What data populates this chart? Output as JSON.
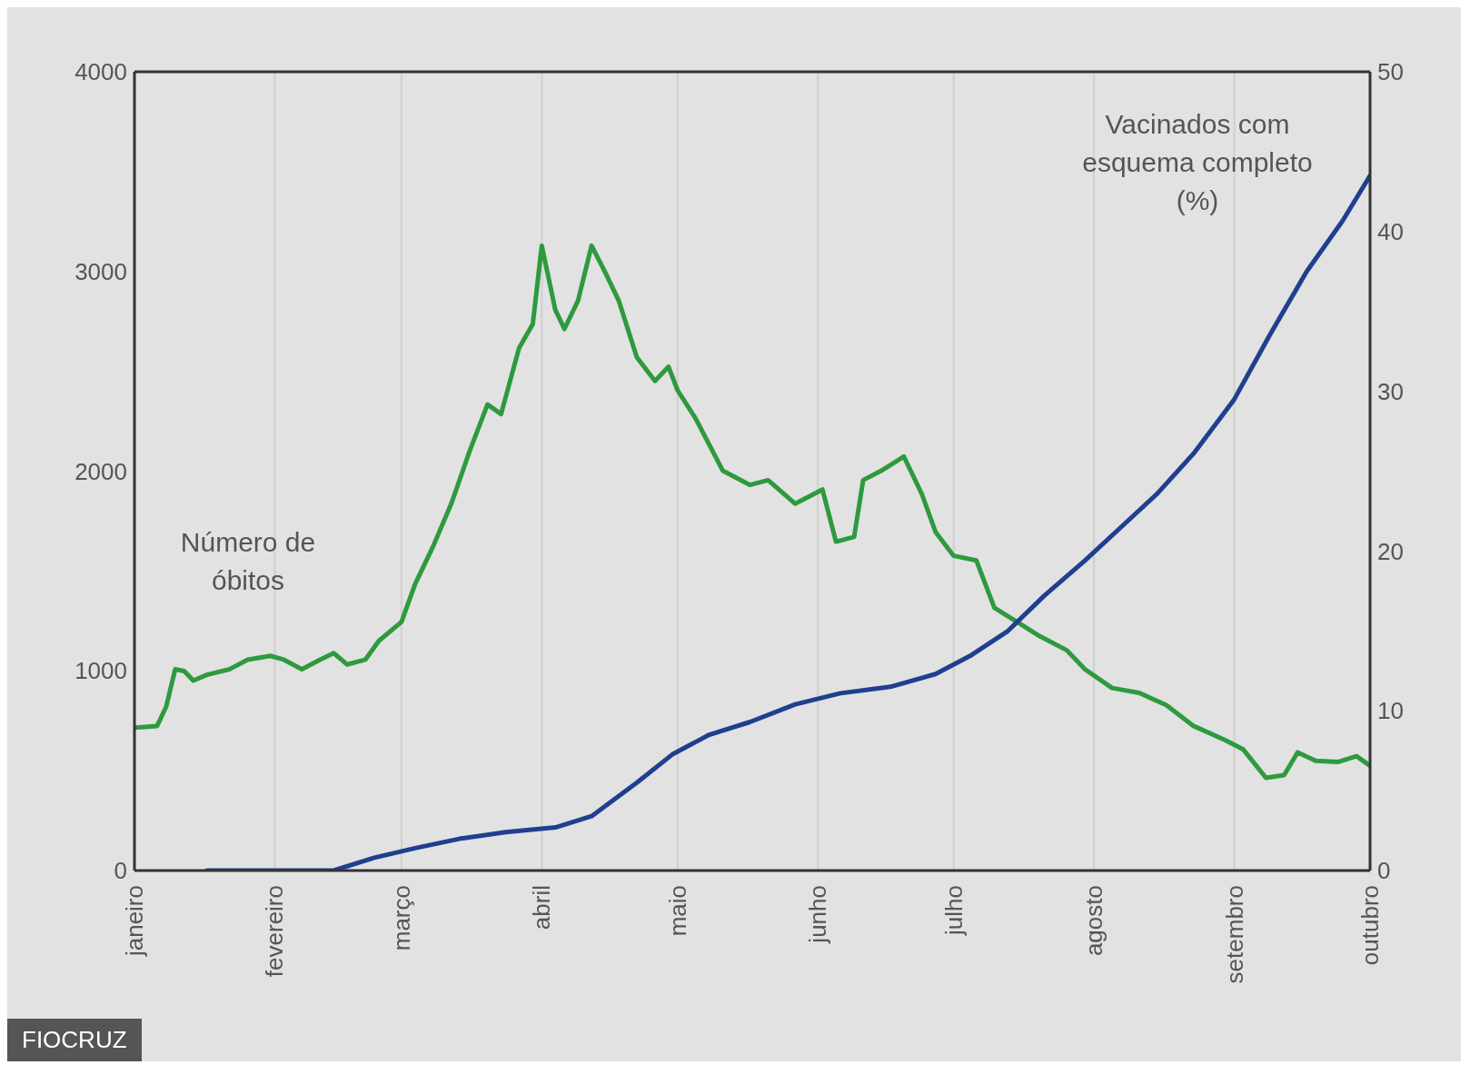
{
  "chart_data": {
    "type": "line",
    "xlim": [
      "--01-01",
      "--10-01"
    ],
    "xticks": [
      {
        "value": "--01-01",
        "label": "janeiro"
      },
      {
        "value": "--02-01",
        "label": "fevereiro"
      },
      {
        "value": "--03-01",
        "label": "março"
      },
      {
        "value": "--04-01",
        "label": "abril"
      },
      {
        "value": "--05-01",
        "label": "maio"
      },
      {
        "value": "--06-01",
        "label": "junho"
      },
      {
        "value": "--07-01",
        "label": "julho"
      },
      {
        "value": "--08-01",
        "label": "agosto"
      },
      {
        "value": "--09-01",
        "label": "setembro"
      },
      {
        "value": "--10-01",
        "label": "outubro"
      }
    ],
    "ylim": [
      0,
      4000
    ],
    "yticks": [
      0,
      1000,
      2000,
      3000,
      4000
    ],
    "y2lim": [
      0,
      50
    ],
    "y2ticks": [
      0,
      10,
      20,
      30,
      40,
      50
    ],
    "grid": "x",
    "marker": "none",
    "line_style": "solid",
    "series": [
      {
        "name": "Número de óbitos",
        "color": "#2e9a3e",
        "x": [
          "--01-01",
          "--01-06",
          "--01-08",
          "--01-10",
          "--01-12",
          "--01-14",
          "--01-17",
          "--01-22",
          "--01-26",
          "--01-31",
          "--02-03",
          "--02-07",
          "--02-11",
          "--02-14",
          "--02-17",
          "--02-21",
          "--02-24",
          "--03-01",
          "--03-04",
          "--03-08",
          "--03-12",
          "--03-16",
          "--03-20",
          "--03-23",
          "--03-27",
          "--03-30",
          "--04-01",
          "--04-04",
          "--04-06",
          "--04-09",
          "--04-12",
          "--04-15",
          "--04-18",
          "--04-22",
          "--04-26",
          "--04-29",
          "--05-01",
          "--05-05",
          "--05-11",
          "--05-17",
          "--05-21",
          "--05-27",
          "--06-02",
          "--06-05",
          "--06-09",
          "--06-11",
          "--06-15",
          "--06-20",
          "--06-24",
          "--06-27",
          "--07-01",
          "--07-06",
          "--07-10",
          "--07-15",
          "--07-20",
          "--07-26",
          "--07-30",
          "--08-05",
          "--08-11",
          "--08-17",
          "--08-23",
          "--08-30",
          "--09-03",
          "--09-08",
          "--09-12",
          "--09-15",
          "--09-19",
          "--09-24",
          "--09-28",
          "--10-01"
        ],
        "values": [
          715,
          724,
          820,
          1008,
          999,
          951,
          980,
          1008,
          1056,
          1075,
          1056,
          1008,
          1056,
          1089,
          1032,
          1056,
          1150,
          1245,
          1434,
          1624,
          1837,
          2097,
          2334,
          2286,
          2618,
          2736,
          3129,
          2807,
          2712,
          2854,
          3129,
          2996,
          2854,
          2570,
          2452,
          2523,
          2405,
          2263,
          2002,
          1931,
          1955,
          1837,
          1908,
          1647,
          1671,
          1955,
          2002,
          2073,
          1884,
          1695,
          1576,
          1553,
          1316,
          1245,
          1174,
          1103,
          1008,
          914,
          890,
          828,
          724,
          653,
          606,
          464,
          478,
          592,
          549,
          544,
          573,
          525
        ]
      },
      {
        "name": "Vacinados com esquema completo (%)",
        "color": "#1f3f8f",
        "axis": "y2",
        "x": [
          "--01-17",
          "--02-14",
          "--02-23",
          "--03-04",
          "--03-14",
          "--03-24",
          "--04-04",
          "--04-12",
          "--04-22",
          "--04-30",
          "--05-08",
          "--05-17",
          "--05-27",
          "--06-06",
          "--06-17",
          "--06-27",
          "--07-05",
          "--07-13",
          "--07-21",
          "--07-30",
          "--08-07",
          "--08-15",
          "--08-23",
          "--09-01",
          "--09-09",
          "--09-17",
          "--09-25",
          "--10-01"
        ],
        "values": [
          0,
          0,
          0.8,
          1.4,
          2.0,
          2.4,
          2.7,
          3.4,
          5.5,
          7.3,
          8.5,
          9.3,
          10.4,
          11.1,
          11.5,
          12.3,
          13.5,
          15.0,
          17.2,
          19.4,
          21.5,
          23.6,
          26.1,
          29.5,
          33.6,
          37.5,
          40.7,
          43.5
        ]
      }
    ],
    "annotations": [
      "FIOCRUZ"
    ]
  }
}
